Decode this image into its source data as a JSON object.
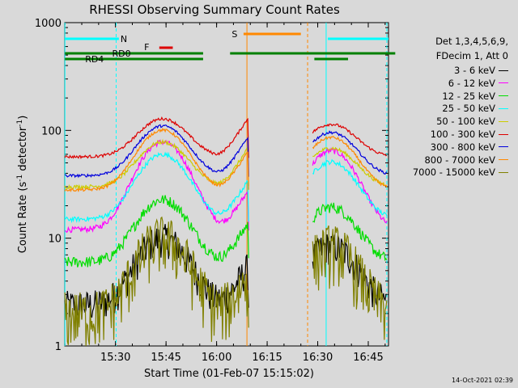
{
  "chart_data": {
    "type": "line",
    "title": "RHESSI Observing Summary Count Rates",
    "xlabel": "Start Time (01-Feb-07 15:15:02)",
    "ylabel_main": "Count Rate (s",
    "ylabel_sup1": "-1",
    "ylabel_mid": " detector",
    "ylabel_sup2": "-1",
    "ylabel_end": ")",
    "y_log": true,
    "xlim_minutes": [
      15.0,
      15.0,
      111.0
    ],
    "x_range": [
      "15:15",
      "16:51"
    ],
    "ylim": [
      1,
      1000
    ],
    "x_ticks": [
      {
        "label": "15:30",
        "t": 15
      },
      {
        "label": "15:45",
        "t": 30
      },
      {
        "label": "16:00",
        "t": 45
      },
      {
        "label": "16:15",
        "t": 60
      },
      {
        "label": "16:30",
        "t": 75
      },
      {
        "label": "16:45",
        "t": 90
      }
    ],
    "y_ticks": [
      {
        "label": "1",
        "v": 1
      },
      {
        "label": "10",
        "v": 10
      },
      {
        "label": "100",
        "v": 100
      },
      {
        "label": "1000",
        "v": 1000
      }
    ],
    "legend_header": [
      "Det 1,3,4,5,6,9,",
      "FDecim 1, Att 0"
    ],
    "series": [
      {
        "name": "3 - 6 keV",
        "color": "#000000"
      },
      {
        "name": "6 - 12 keV",
        "color": "#ff00ff"
      },
      {
        "name": "12 - 25 keV",
        "color": "#00dd00"
      },
      {
        "name": "25 - 50 keV",
        "color": "#00ffff"
      },
      {
        "name": "50 - 100 keV",
        "color": "#cccc00"
      },
      {
        "name": "100 - 300 keV",
        "color": "#dd0000"
      },
      {
        "name": "300 - 800 keV",
        "color": "#0000dd"
      },
      {
        "name": "800 - 7000 keV",
        "color": "#ff8800"
      },
      {
        "name": "7000 - 15000 keV",
        "color": "#808000"
      }
    ],
    "flags": [
      {
        "label": "N",
        "color": "#00ffff",
        "segments": [
          [
            0,
            16
          ],
          [
            78,
            96
          ]
        ]
      },
      {
        "label": "F",
        "color": "#dd0000",
        "segments": [
          [
            28,
            32
          ]
        ]
      },
      {
        "label": "S",
        "color": "#ff8800",
        "segments": [
          [
            53,
            70
          ]
        ]
      },
      {
        "label": "RD0",
        "color": "#008000",
        "segments": [
          [
            0,
            41
          ],
          [
            49,
            98
          ]
        ]
      },
      {
        "label": "RD4",
        "color": "#008000",
        "segments": [
          [
            0,
            41
          ],
          [
            74,
            84
          ]
        ]
      }
    ],
    "eclipse_minutes": [
      [
        0,
        15
      ],
      [
        72,
        96
      ]
    ]
  },
  "timestamp": "14-Oct-2021 02:39"
}
